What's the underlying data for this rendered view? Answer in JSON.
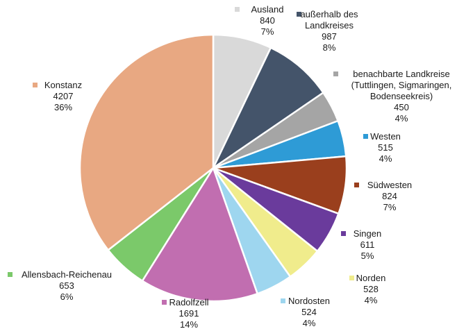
{
  "chart_data": {
    "type": "pie",
    "title": "",
    "legend": "labels next to slices",
    "slices": [
      {
        "label": "Ausland",
        "value": 840,
        "pct": "7%",
        "color": "#d9d9d9"
      },
      {
        "label": "außerhalb des\nLandkreises",
        "value": 987,
        "pct": "8%",
        "color": "#44546a"
      },
      {
        "label": "benachbarte Landkreise\n(Tuttlingen, Sigmaringen,\nBodenseekreis)",
        "value": 450,
        "pct": "4%",
        "color": "#a5a5a5"
      },
      {
        "label": "Westen",
        "value": 515,
        "pct": "4%",
        "color": "#2e9bd6"
      },
      {
        "label": "Südwesten",
        "value": 824,
        "pct": "7%",
        "color": "#9a3f1d"
      },
      {
        "label": "Singen",
        "value": 611,
        "pct": "5%",
        "color": "#6a3b9c"
      },
      {
        "label": "Norden",
        "value": 528,
        "pct": "4%",
        "color": "#f0ec8c"
      },
      {
        "label": "Nordosten",
        "value": 524,
        "pct": "4%",
        "color": "#9ed6ef"
      },
      {
        "label": "Radolfzell",
        "value": 1691,
        "pct": "14%",
        "color": "#c16eb0"
      },
      {
        "label": "Allensbach-Reichenau",
        "value": 653,
        "pct": "6%",
        "color": "#7bc96a"
      },
      {
        "label": "Konstanz",
        "value": 4207,
        "pct": "36%",
        "color": "#e8a882"
      }
    ]
  }
}
